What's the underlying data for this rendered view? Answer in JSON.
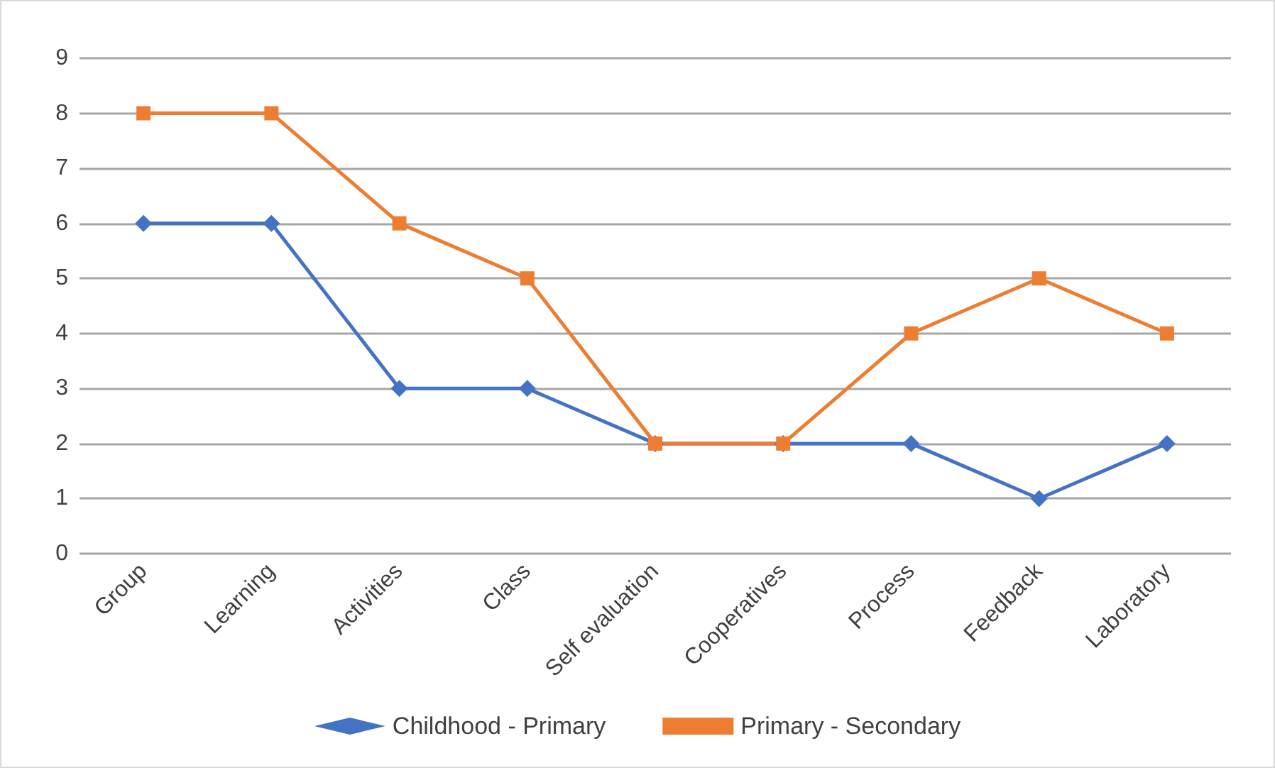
{
  "chart_data": {
    "type": "line",
    "categories": [
      "Group",
      "Learning",
      "Activities",
      "Class",
      "Self evaluation",
      "Cooperatives",
      "Process",
      "Feedback",
      "Laboratory"
    ],
    "series": [
      {
        "name": "Childhood - Primary",
        "color": "#4472c4",
        "marker": "diamond",
        "values": [
          6,
          6,
          3,
          3,
          2,
          2,
          2,
          1,
          2
        ]
      },
      {
        "name": "Primary - Secondary",
        "color": "#ed7d31",
        "marker": "square",
        "values": [
          8,
          8,
          6,
          5,
          2,
          2,
          4,
          5,
          4
        ]
      }
    ],
    "ylim": [
      0,
      9
    ],
    "yticks": [
      0,
      1,
      2,
      3,
      4,
      5,
      6,
      7,
      8,
      9
    ],
    "grid": "y",
    "legend": "bottom",
    "line_style": "solid"
  }
}
